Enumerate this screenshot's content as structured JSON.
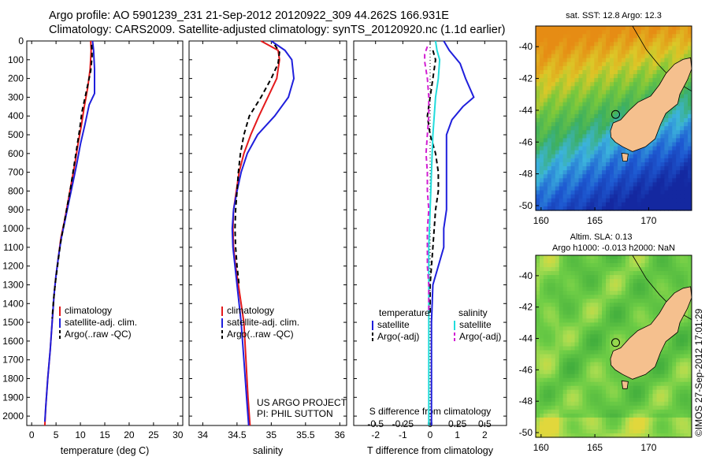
{
  "header": {
    "line1": "Argo profile: AO 5901239_231 21-Sep-2012 20120922_309 44.262S 166.931E",
    "line2": "Climatology: CARS2009. Satellite-adjusted climatology: synTS_20120920.nc (1.1d earlier)"
  },
  "colors": {
    "climatology": "#e41a1c",
    "satellite": "#1f1fdc",
    "argo": "#000000",
    "sat_salinity": "#22dcdc",
    "argo_salinity": "#d21ed2",
    "land": "#f5c08e"
  },
  "chart_data": [
    {
      "type": "line",
      "y_ticks": [
        0,
        100,
        200,
        300,
        400,
        500,
        600,
        700,
        800,
        900,
        1000,
        1100,
        1200,
        1300,
        1400,
        1500,
        1600,
        1700,
        1800,
        1900,
        2000
      ],
      "ylim": [
        2050,
        0
      ],
      "xlabel": "temperature (deg C)",
      "xlim": [
        -1,
        31
      ],
      "x_ticks": [
        0,
        5,
        10,
        15,
        20,
        25,
        30
      ],
      "legend": [
        "climatology",
        "satellite-adj. clim.",
        "Argo(..raw -QC)"
      ],
      "series": [
        {
          "name": "climatology",
          "style": "solid",
          "color_key": "climatology",
          "points": [
            [
              12.1,
              0
            ],
            [
              12.2,
              50
            ],
            [
              12.0,
              150
            ],
            [
              11.5,
              250
            ],
            [
              10.8,
              350
            ],
            [
              10.2,
              450
            ],
            [
              9.5,
              550
            ],
            [
              8.9,
              650
            ],
            [
              8.2,
              750
            ],
            [
              7.5,
              850
            ],
            [
              6.8,
              950
            ],
            [
              6.0,
              1050
            ],
            [
              5.5,
              1150
            ],
            [
              5.0,
              1250
            ],
            [
              4.6,
              1350
            ],
            [
              4.2,
              1500
            ],
            [
              3.8,
              1650
            ],
            [
              3.3,
              1800
            ],
            [
              2.9,
              1950
            ],
            [
              2.7,
              2050
            ]
          ]
        },
        {
          "name": "satellite-adj. clim.",
          "style": "solid",
          "color_key": "satellite",
          "points": [
            [
              12.5,
              0
            ],
            [
              12.7,
              50
            ],
            [
              12.9,
              150
            ],
            [
              12.9,
              280
            ],
            [
              11.8,
              340
            ],
            [
              10.9,
              450
            ],
            [
              10.0,
              550
            ],
            [
              9.3,
              650
            ],
            [
              8.5,
              750
            ],
            [
              7.7,
              850
            ],
            [
              6.9,
              950
            ],
            [
              6.1,
              1050
            ],
            [
              5.5,
              1150
            ],
            [
              5.0,
              1250
            ],
            [
              4.6,
              1350
            ],
            [
              4.2,
              1500
            ],
            [
              3.8,
              1650
            ],
            [
              3.3,
              1800
            ],
            [
              2.9,
              1950
            ],
            [
              2.7,
              2030
            ]
          ]
        },
        {
          "name": "Argo(..raw -QC)",
          "style": "dash",
          "color_key": "argo",
          "points": [
            [
              12.3,
              20
            ],
            [
              12.4,
              80
            ],
            [
              12.1,
              160
            ],
            [
              11.3,
              260
            ],
            [
              10.3,
              380
            ],
            [
              9.8,
              480
            ],
            [
              9.2,
              580
            ],
            [
              8.6,
              680
            ],
            [
              8.0,
              780
            ],
            [
              7.3,
              880
            ],
            [
              6.6,
              980
            ],
            [
              5.9,
              1080
            ],
            [
              5.4,
              1180
            ],
            [
              4.9,
              1280
            ],
            [
              4.5,
              1380
            ],
            [
              4.2,
              1480
            ]
          ]
        }
      ]
    },
    {
      "type": "line",
      "y_ticks": [
        0,
        100,
        200,
        300,
        400,
        500,
        600,
        700,
        800,
        900,
        1000,
        1100,
        1200,
        1300,
        1400,
        1500,
        1600,
        1700,
        1800,
        1900,
        2000
      ],
      "ylim": [
        2050,
        0
      ],
      "xlabel": "salinity",
      "xlim": [
        33.8,
        36.1
      ],
      "x_ticks": [
        34,
        34.5,
        35,
        35.5,
        36
      ],
      "legend": [
        "climatology",
        "satellite-adj. clim.",
        "Argo(..raw -QC)"
      ],
      "annotation": [
        "US ARGO PROJECT",
        "PI: PHIL SUTTON"
      ],
      "series": [
        {
          "name": "climatology",
          "style": "solid",
          "color_key": "climatology",
          "points": [
            [
              34.85,
              0
            ],
            [
              35.1,
              50
            ],
            [
              35.12,
              100
            ],
            [
              35.08,
              200
            ],
            [
              34.95,
              300
            ],
            [
              34.82,
              400
            ],
            [
              34.7,
              500
            ],
            [
              34.6,
              600
            ],
            [
              34.53,
              700
            ],
            [
              34.49,
              800
            ],
            [
              34.45,
              900
            ],
            [
              34.44,
              1000
            ],
            [
              34.45,
              1100
            ],
            [
              34.48,
              1200
            ],
            [
              34.52,
              1300
            ],
            [
              34.56,
              1400
            ],
            [
              34.6,
              1500
            ],
            [
              34.63,
              1700
            ],
            [
              34.66,
              1900
            ],
            [
              34.69,
              2050
            ]
          ]
        },
        {
          "name": "satellite-adj. clim.",
          "style": "solid",
          "color_key": "satellite",
          "points": [
            [
              35.0,
              0
            ],
            [
              35.2,
              50
            ],
            [
              35.3,
              100
            ],
            [
              35.33,
              200
            ],
            [
              35.25,
              300
            ],
            [
              35.05,
              400
            ],
            [
              34.8,
              500
            ],
            [
              34.65,
              600
            ],
            [
              34.56,
              700
            ],
            [
              34.5,
              800
            ],
            [
              34.45,
              900
            ],
            [
              34.43,
              1000
            ],
            [
              34.44,
              1100
            ],
            [
              34.47,
              1200
            ],
            [
              34.5,
              1300
            ],
            [
              34.53,
              1400
            ],
            [
              34.56,
              1500
            ],
            [
              34.6,
              1700
            ],
            [
              34.64,
              1900
            ],
            [
              34.67,
              2050
            ]
          ]
        },
        {
          "name": "Argo(..raw -QC)",
          "style": "dash",
          "color_key": "argo",
          "points": [
            [
              35.05,
              20
            ],
            [
              35.12,
              60
            ],
            [
              35.1,
              120
            ],
            [
              35.0,
              200
            ],
            [
              34.85,
              300
            ],
            [
              34.68,
              400
            ],
            [
              34.6,
              500
            ],
            [
              34.55,
              600
            ],
            [
              34.52,
              700
            ],
            [
              34.5,
              800
            ],
            [
              34.48,
              900
            ],
            [
              34.47,
              1000
            ],
            [
              34.48,
              1100
            ],
            [
              34.5,
              1200
            ],
            [
              34.53,
              1300
            ]
          ]
        }
      ]
    },
    {
      "type": "line",
      "y_ticks": [
        0,
        100,
        200,
        300,
        400,
        500,
        600,
        700,
        800,
        900,
        1000,
        1100,
        1200,
        1300,
        1400,
        1500,
        1600,
        1700,
        1800,
        1900,
        2000
      ],
      "ylim": [
        2050,
        0
      ],
      "xlabel": "T difference from climatology",
      "xlim": [
        -2.8,
        2.8
      ],
      "x_ticks": [
        -2,
        -1,
        0,
        1,
        2
      ],
      "top_xlabel": "S difference from climatology",
      "top_ticks": [
        "-0.5",
        "-0.25",
        "0",
        "0.25",
        "0.5"
      ],
      "legend_headers": [
        "temperature",
        "salinity"
      ],
      "legend": [
        "satellite",
        "Argo(-adj)",
        "satellite",
        "Argo(-adj)"
      ],
      "series": [
        {
          "name": "satellite",
          "style": "solid",
          "color_key": "satellite",
          "points": [
            [
              0.5,
              0
            ],
            [
              0.7,
              50
            ],
            [
              1.1,
              120
            ],
            [
              1.3,
              200
            ],
            [
              1.6,
              300
            ],
            [
              1.2,
              350
            ],
            [
              0.8,
              420
            ],
            [
              0.6,
              500
            ],
            [
              0.6,
              600
            ],
            [
              0.6,
              700
            ],
            [
              0.6,
              800
            ],
            [
              0.6,
              900
            ],
            [
              0.5,
              1000
            ],
            [
              0.5,
              1100
            ],
            [
              0.3,
              1200
            ],
            [
              0.1,
              1300
            ],
            [
              0.05,
              1500
            ],
            [
              0.05,
              1700
            ],
            [
              0.05,
              1900
            ],
            [
              0.05,
              2050
            ]
          ]
        },
        {
          "name": "Argo(-adj)",
          "style": "dash",
          "color_key": "argo",
          "points": [
            [
              0.1,
              50
            ],
            [
              0.2,
              100
            ],
            [
              0.1,
              200
            ],
            [
              0.0,
              300
            ],
            [
              -0.1,
              400
            ],
            [
              0.0,
              500
            ],
            [
              0.2,
              600
            ],
            [
              0.3,
              700
            ],
            [
              0.3,
              800
            ],
            [
              0.2,
              900
            ],
            [
              0.15,
              1000
            ],
            [
              0.1,
              1100
            ],
            [
              0.05,
              1200
            ],
            [
              0.0,
              1300
            ],
            [
              0.0,
              1450
            ]
          ]
        },
        {
          "name": "satellite",
          "style": "solid",
          "color_key": "sat_salinity",
          "points": [
            [
              0.2,
              0
            ],
            [
              0.25,
              50
            ],
            [
              0.35,
              100
            ],
            [
              0.3,
              200
            ],
            [
              0.2,
              300
            ],
            [
              0.15,
              400
            ],
            [
              0.1,
              500
            ],
            [
              0.05,
              700
            ],
            [
              0.0,
              900
            ],
            [
              -0.05,
              1100
            ],
            [
              -0.05,
              1300
            ],
            [
              -0.05,
              1500
            ],
            [
              -0.05,
              1700
            ],
            [
              -0.05,
              1900
            ],
            [
              -0.05,
              2050
            ]
          ]
        },
        {
          "name": "Argo(-adj)",
          "style": "dash",
          "color_key": "argo_salinity",
          "points": [
            [
              -0.1,
              30
            ],
            [
              -0.2,
              70
            ],
            [
              -0.2,
              110
            ],
            [
              -0.1,
              200
            ],
            [
              -0.05,
              300
            ],
            [
              -0.05,
              400
            ],
            [
              -0.1,
              500
            ],
            [
              -0.15,
              600
            ],
            [
              -0.1,
              700
            ],
            [
              -0.1,
              800
            ],
            [
              -0.05,
              900
            ],
            [
              -0.1,
              1000
            ],
            [
              -0.1,
              1100
            ],
            [
              -0.1,
              1200
            ],
            [
              -0.05,
              1300
            ],
            [
              -0.05,
              1450
            ]
          ]
        }
      ]
    },
    {
      "type": "heatmap",
      "title": "sat. SST: 12.8 Argo: 12.3",
      "x_ticks": [
        160,
        165,
        170
      ],
      "y_ticks": [
        -40,
        -42,
        -44,
        -46,
        -48,
        -50
      ],
      "xlim": [
        159.5,
        174
      ],
      "ylim": [
        -50.3,
        -38.7
      ],
      "marker": [
        166.931,
        -44.262
      ],
      "field": "sst"
    },
    {
      "type": "heatmap",
      "title_lines": [
        "Altim. SLA: 0.13",
        "Argo h1000: -0.013 h2000: NaN"
      ],
      "x_ticks": [
        160,
        165,
        170
      ],
      "y_ticks": [
        -40,
        -42,
        -44,
        -46,
        -48,
        -50
      ],
      "xlim": [
        159.5,
        174
      ],
      "ylim": [
        -50.3,
        -38.7
      ],
      "marker": [
        166.931,
        -44.262
      ],
      "field": "sla"
    }
  ],
  "credit": "©IMOS 27-Sep-2012 17:01:29"
}
